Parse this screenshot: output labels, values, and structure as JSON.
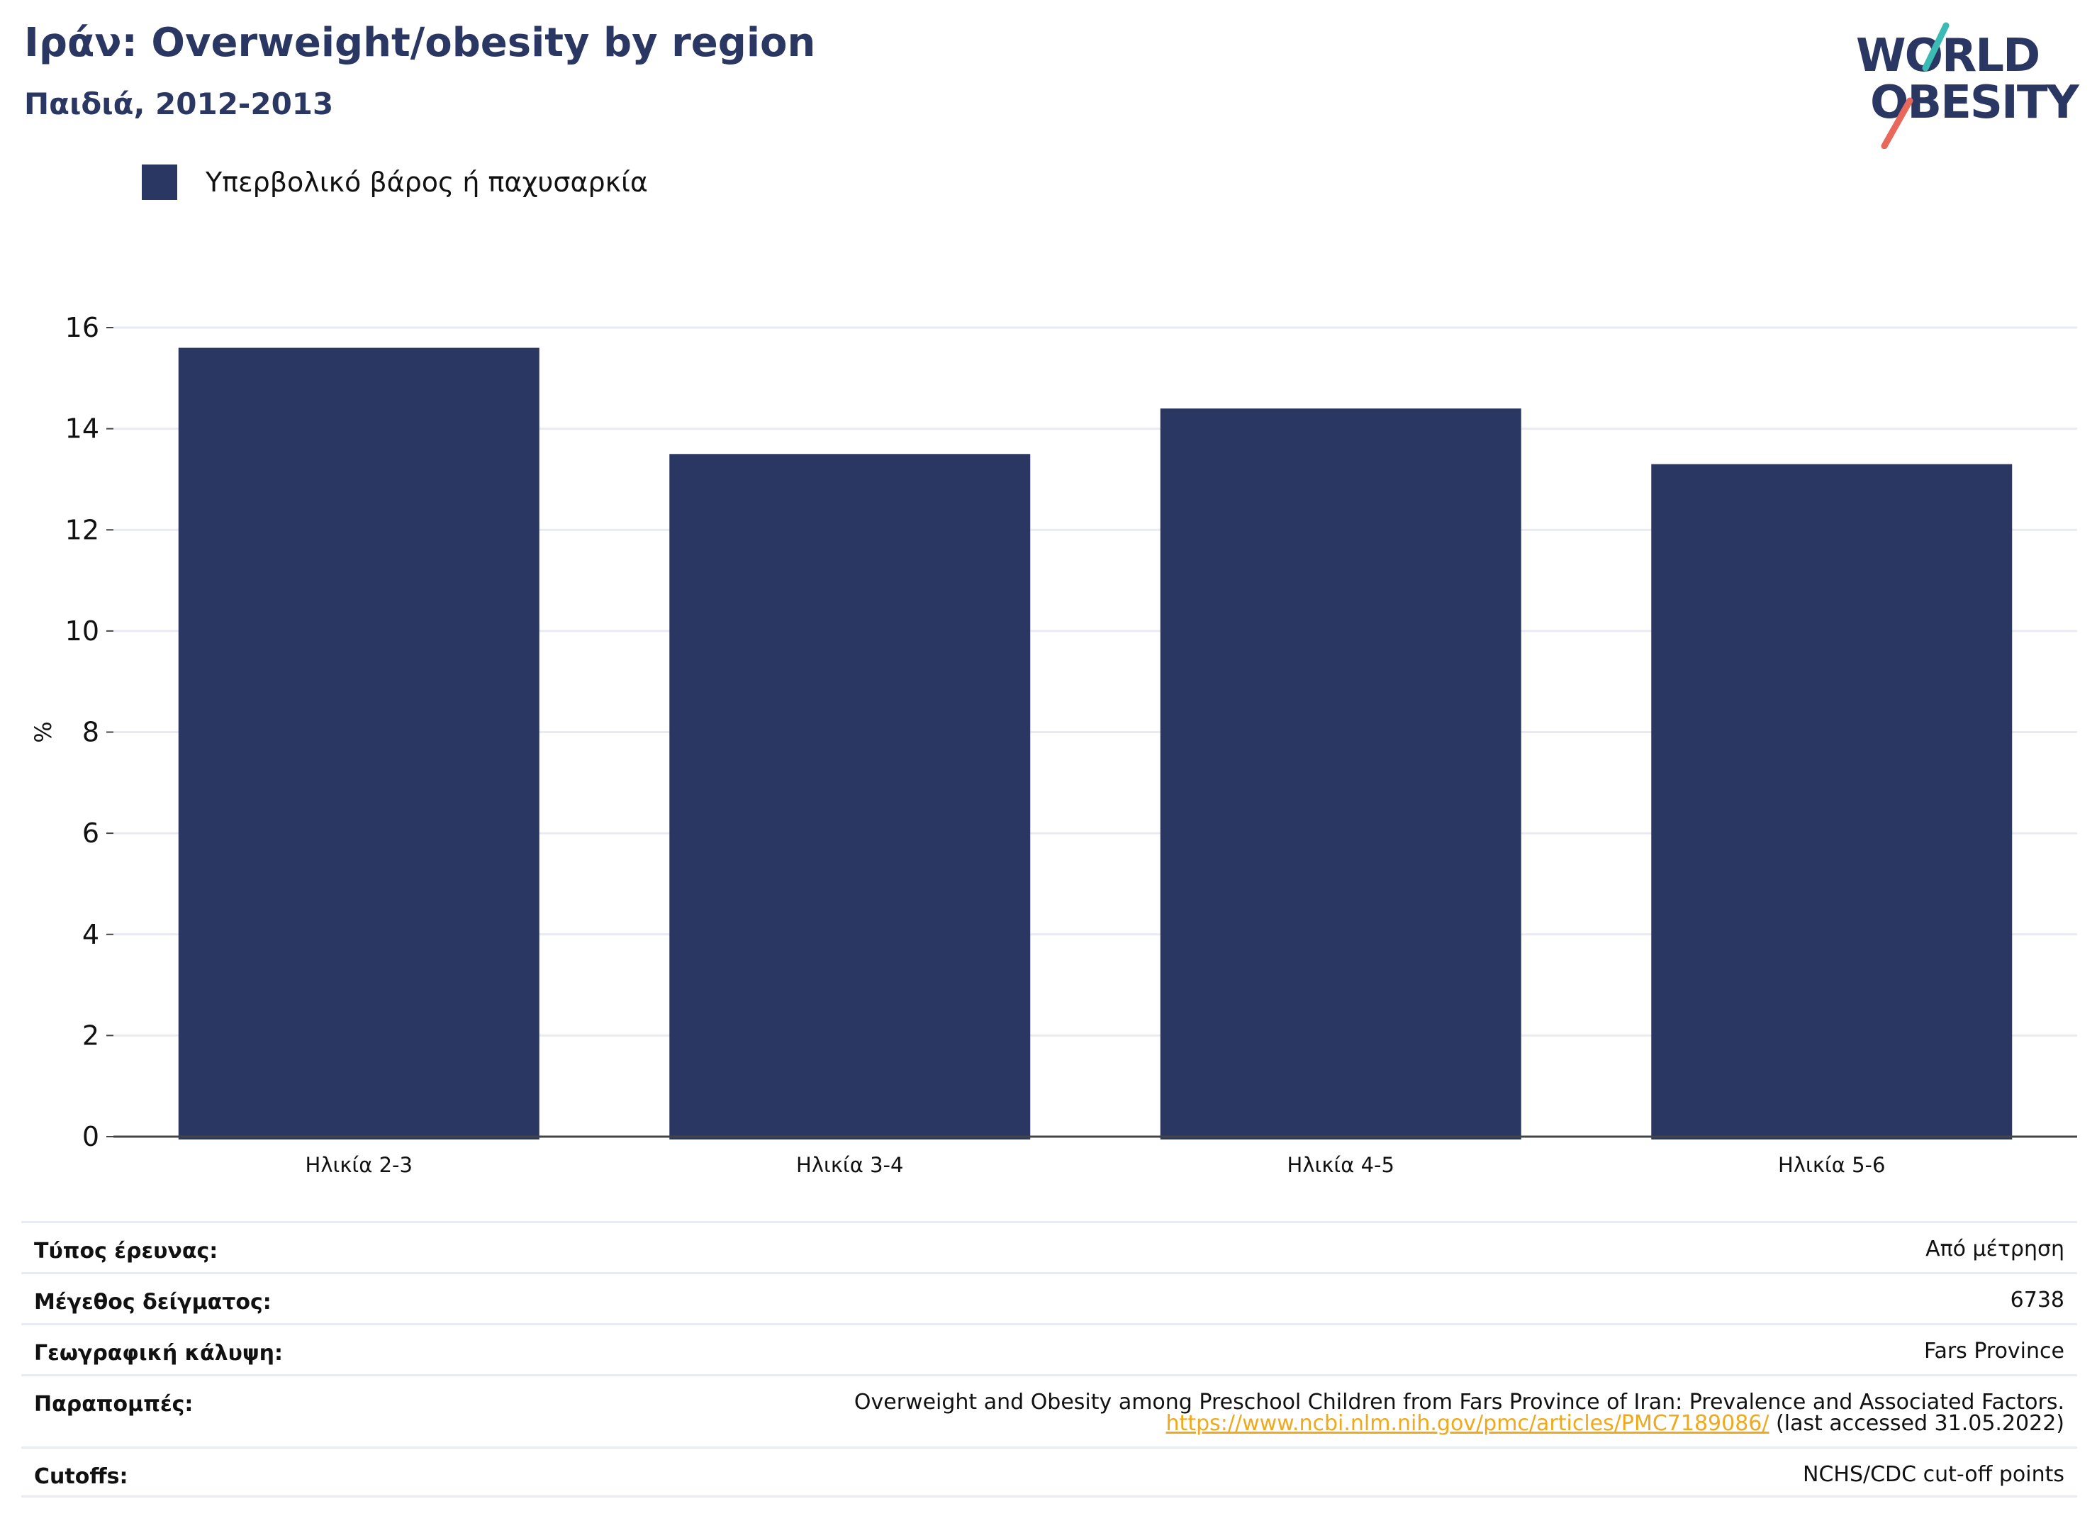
{
  "header": {
    "title": "Ιράν: Overweight/obesity by region",
    "subtitle": "Παιδιά, 2012-2013"
  },
  "logo": {
    "line1": "WORLD",
    "line2": "OBESITY",
    "colors": {
      "text": "#2b3763",
      "teal": "#3bbbb3",
      "coral": "#e8695b"
    }
  },
  "legend": {
    "label": "Υπερβολικό βάρος ή παχυσαρκία",
    "color": "#2b3763"
  },
  "chart_data": {
    "type": "bar",
    "categories": [
      "Ηλικία 2-3",
      "Ηλικία 3-4",
      "Ηλικία 4-5",
      "Ηλικία 5-6"
    ],
    "series": [
      {
        "name": "Υπερβολικό βάρος ή παχυσαρκία",
        "values": [
          15.6,
          13.5,
          14.4,
          13.3
        ],
        "color": "#2b3763"
      }
    ],
    "ylabel": "%",
    "ylim": [
      0,
      16
    ],
    "yticks": [
      0,
      2,
      4,
      6,
      8,
      10,
      12,
      14,
      16
    ],
    "grid": true,
    "legend_position": "top-left"
  },
  "info_table": {
    "survey_type": {
      "label": "Τύπος έρευνας:",
      "value": "Από μέτρηση"
    },
    "sample_size": {
      "label": "Μέγεθος δείγματος:",
      "value": "6738"
    },
    "coverage": {
      "label": "Γεωγραφική κάλυψη:",
      "value": "Fars Province"
    },
    "references": {
      "label": "Παραπομπές:",
      "text": "Overweight and Obesity among Preschool Children from Fars Province of Iran: Prevalence and Associated Factors.",
      "link": "https://www.ncbi.nlm.nih.gov/pmc/articles/PMC7189086/",
      "accessed": " (last accessed 31.05.2022)"
    },
    "cutoffs": {
      "label": "Cutoffs:",
      "value": "NCHS/CDC cut-off points"
    }
  }
}
